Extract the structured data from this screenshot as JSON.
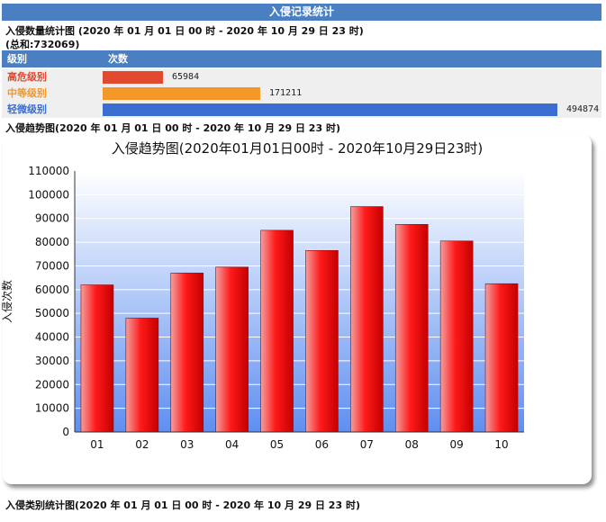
{
  "banner": {
    "title": "入侵记录统计"
  },
  "level_section": {
    "title": "入侵数量统计图 (2020 年 01 月 01 日 00 时 - 2020 年 10 月 29 日 23 时)",
    "total": "(总和:732069)",
    "header": {
      "level": "级别",
      "count": "次数"
    },
    "rows": [
      {
        "name": "高危级别",
        "value": 65984,
        "label": "65984",
        "color": "#e2492f"
      },
      {
        "name": "中等级别",
        "value": 171211,
        "label": "171211",
        "color": "#f5982a"
      },
      {
        "name": "轻微级别",
        "value": 494874,
        "label": "494874",
        "color": "#3a6fd1"
      }
    ]
  },
  "trend_section": {
    "title": "入侵趋势图(2020 年 01 月 01 日 00 时 - 2020 年 10 月 29 日 23 时)"
  },
  "type_section": {
    "title": "入侵类别统计图(2020 年 01 月 01 日 00 时 - 2020 年 10 月 29 日 23 时)"
  },
  "chart_data": {
    "type": "bar",
    "title": "入侵趋势图(2020年01月01日00时 - 2020年10月29日23时)",
    "xlabel": "",
    "ylabel": "入侵次数",
    "categories": [
      "01",
      "02",
      "03",
      "04",
      "05",
      "06",
      "07",
      "08",
      "09",
      "10"
    ],
    "values": [
      62000,
      48000,
      67000,
      69500,
      85000,
      76500,
      95000,
      87500,
      80500,
      62500
    ],
    "ylim": [
      0,
      110000
    ],
    "yticks": [
      0,
      10000,
      20000,
      30000,
      40000,
      50000,
      60000,
      70000,
      80000,
      90000,
      100000,
      110000
    ],
    "grid": true,
    "bar_color": "#ff1a1a"
  }
}
